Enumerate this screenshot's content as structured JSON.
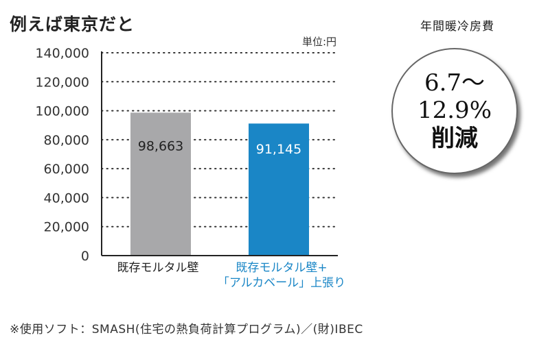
{
  "title": "例えば東京だと",
  "unit_label": "単位:円",
  "chart_data": {
    "type": "bar",
    "categories": [
      "既存モルタル壁",
      "既存モルタル壁+「アルカベール」上張り"
    ],
    "category_lines": [
      [
        "既存モルタル壁"
      ],
      [
        "既存モルタル壁+",
        "「アルカベール」上張り"
      ]
    ],
    "values": [
      98663,
      91145
    ],
    "value_labels": [
      "98,663",
      "91,145"
    ],
    "bar_colors": [
      "#a8a8aa",
      "#1a86c6"
    ],
    "category_colors": [
      "#222222",
      "#1a86c6"
    ],
    "ylim": [
      0,
      140000
    ],
    "yticks": [
      0,
      20000,
      40000,
      60000,
      80000,
      100000,
      120000,
      140000
    ],
    "ytick_labels": [
      "0",
      "20,000",
      "40,000",
      "60,000",
      "80,000",
      "100,000",
      "120,000",
      "140,000"
    ],
    "grid": "dotted horizontal"
  },
  "badge": {
    "title": "年間暖冷房費",
    "line1": "6.7〜",
    "line2": "12.9%",
    "line3": "削減"
  },
  "footnote": "※使用ソフト：SMASH(住宅の熱負荷計算プログラム)／(財)IBEC"
}
